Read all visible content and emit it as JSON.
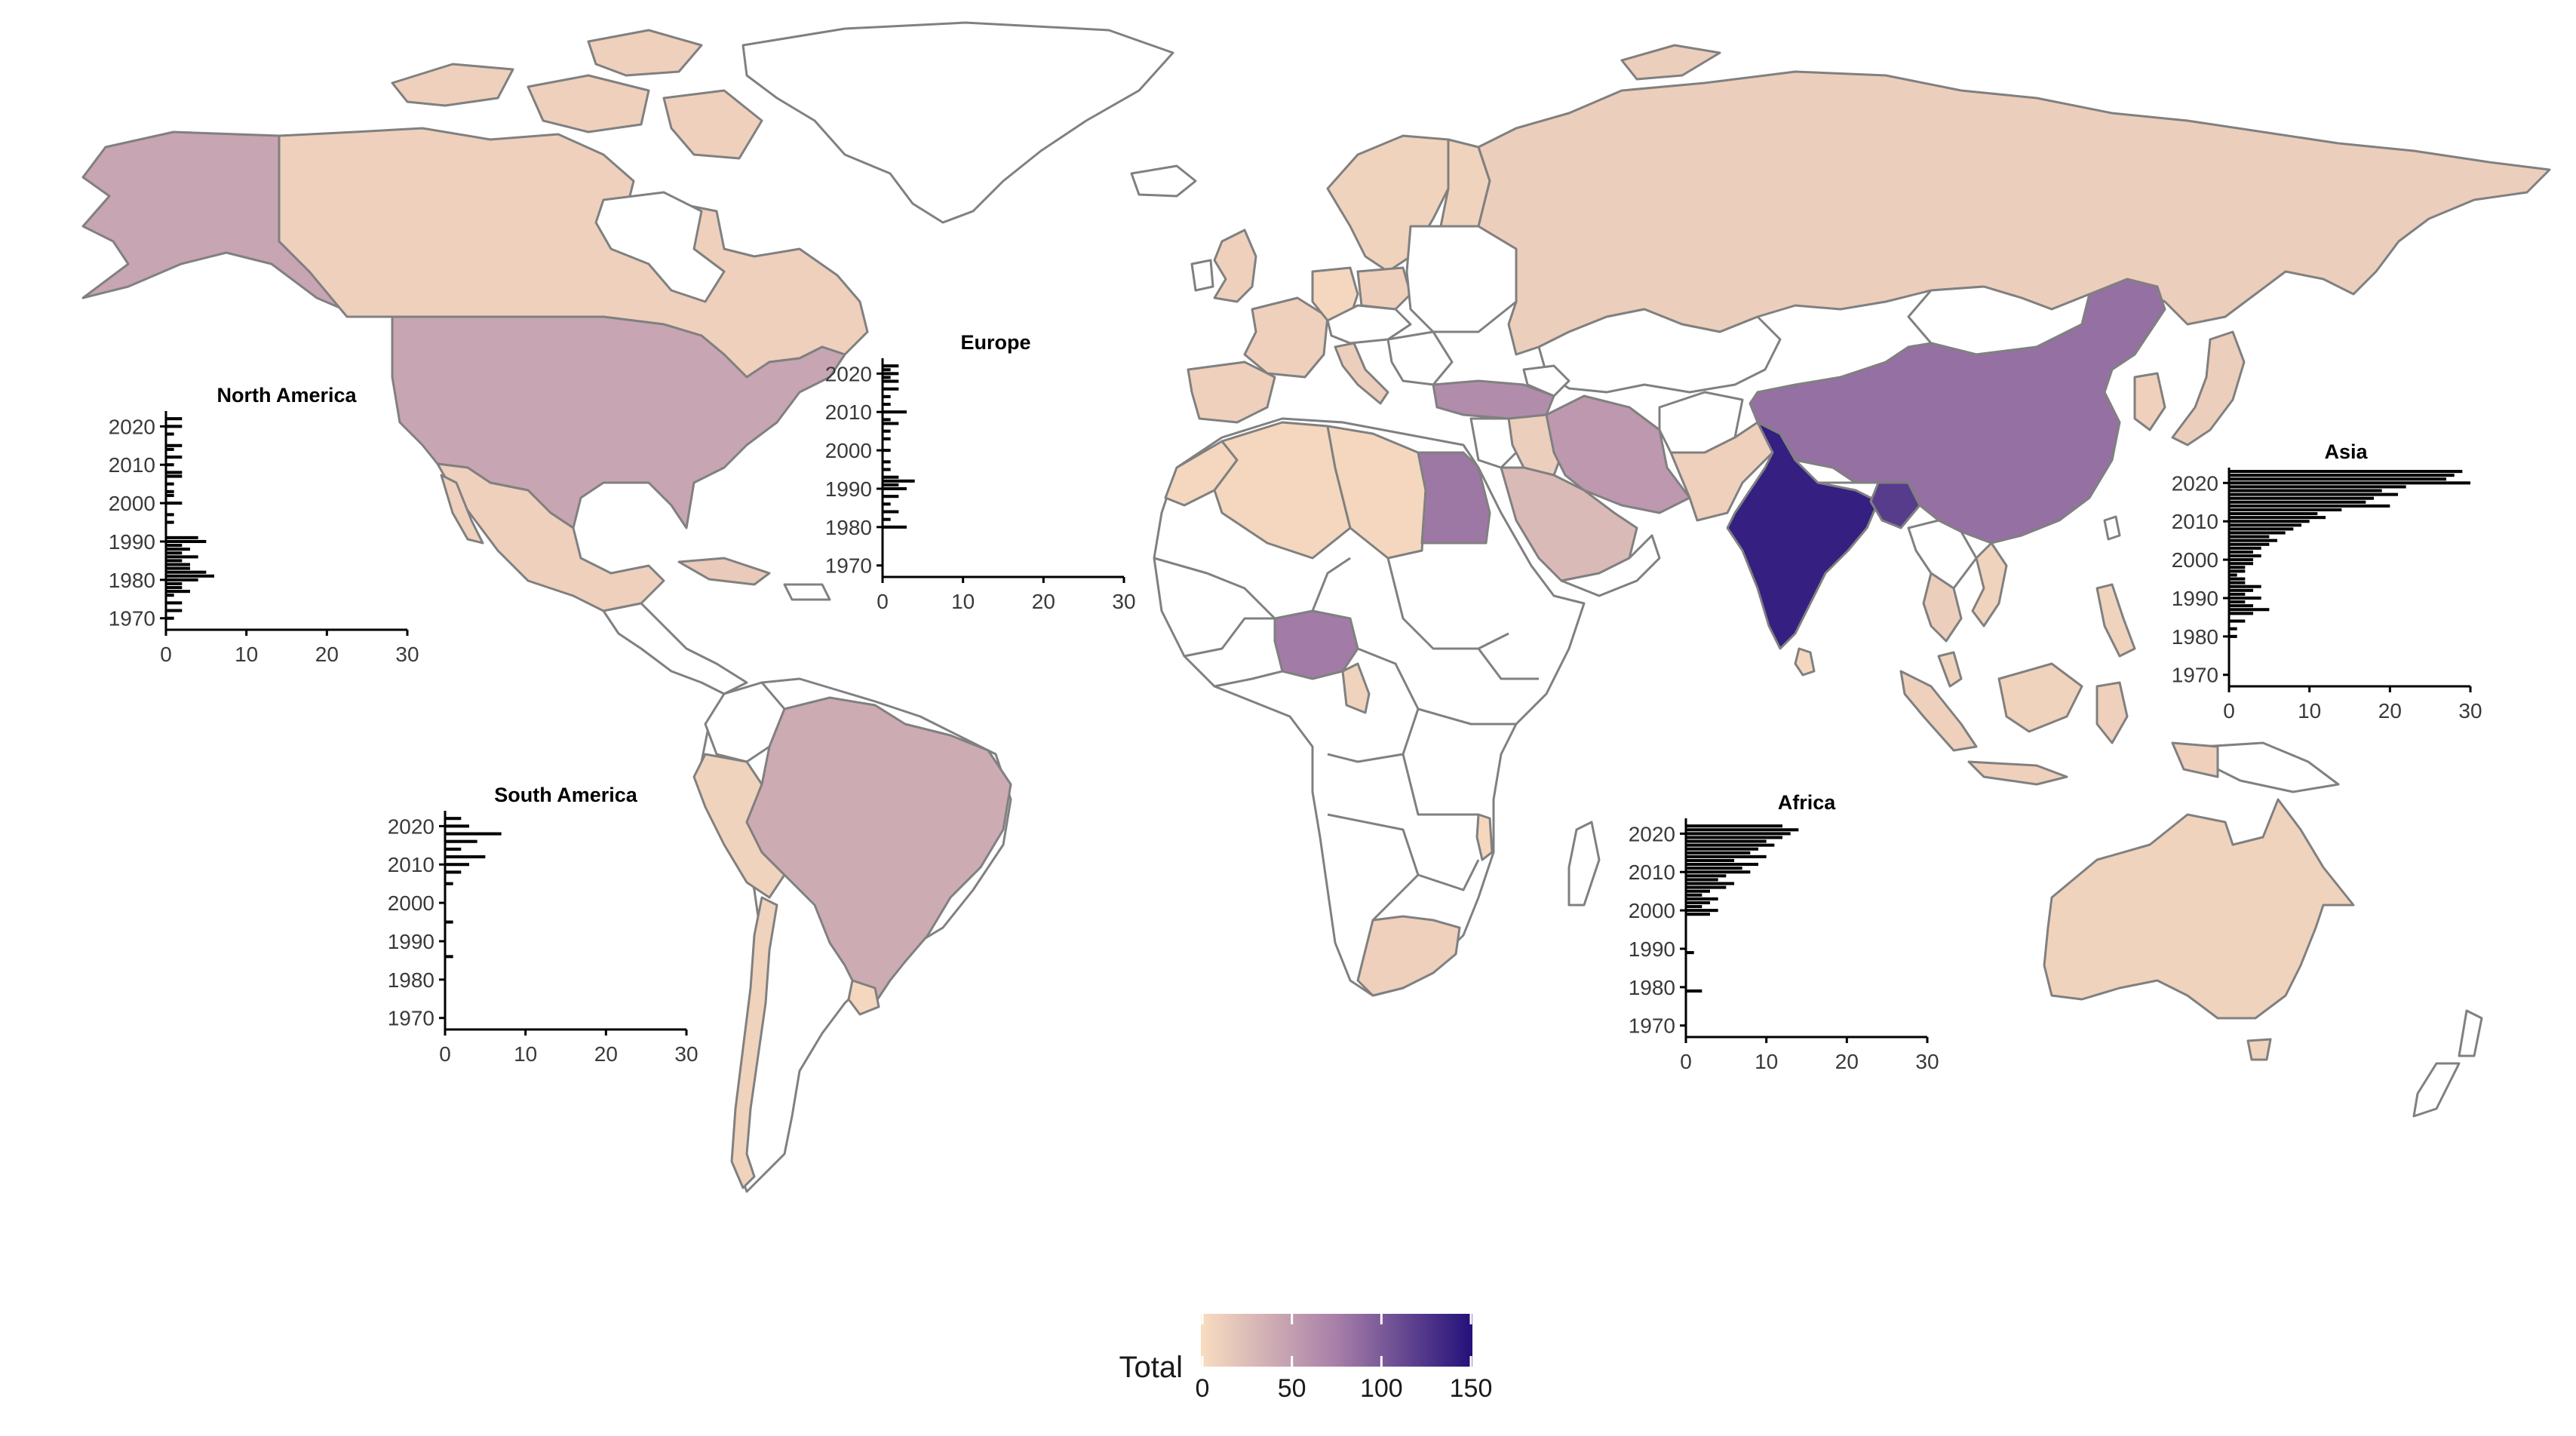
{
  "map": {
    "palette": {
      "low": "#f9ddc0",
      "mid": "#a77fa8",
      "high": "#23107a",
      "nodata": "#ffffff",
      "border": "#808080"
    },
    "countries": [
      {
        "name": "Canada",
        "value": 10
      },
      {
        "name": "Alaska",
        "value": 45
      },
      {
        "name": "United States",
        "value": 45
      },
      {
        "name": "Mexico",
        "value": 10
      },
      {
        "name": "Cuba",
        "value": 15
      },
      {
        "name": "Brazil",
        "value": 40
      },
      {
        "name": "Peru",
        "value": 8
      },
      {
        "name": "Chile",
        "value": 8
      },
      {
        "name": "Uruguay",
        "value": 5
      },
      {
        "name": "Russia",
        "value": 12
      },
      {
        "name": "United Kingdom",
        "value": 10
      },
      {
        "name": "Iberia",
        "value": 10
      },
      {
        "name": "France",
        "value": 10
      },
      {
        "name": "Germany",
        "value": 5
      },
      {
        "name": "Poland",
        "value": 10
      },
      {
        "name": "Italy",
        "value": 12
      },
      {
        "name": "Scandinavia",
        "value": 8
      },
      {
        "name": "Turkey",
        "value": 65
      },
      {
        "name": "Iran",
        "value": 55
      },
      {
        "name": "Saudi Arabia",
        "value": 28
      },
      {
        "name": "Iraq",
        "value": 12
      },
      {
        "name": "Egypt",
        "value": 80
      },
      {
        "name": "Algeria",
        "value": 5
      },
      {
        "name": "Libya",
        "value": 5
      },
      {
        "name": "Morocco",
        "value": 5
      },
      {
        "name": "Nigeria",
        "value": 78
      },
      {
        "name": "Cameroon",
        "value": 8
      },
      {
        "name": "Ethiopia",
        "value": 5
      },
      {
        "name": "Malawi",
        "value": 5
      },
      {
        "name": "South Africa",
        "value": 10
      },
      {
        "name": "Pakistan",
        "value": 10
      },
      {
        "name": "India",
        "value": 140
      },
      {
        "name": "Bangladesh",
        "value": 120
      },
      {
        "name": "Sri Lanka",
        "value": 5
      },
      {
        "name": "China",
        "value": 85
      },
      {
        "name": "Japan",
        "value": 12
      },
      {
        "name": "Korea",
        "value": 10
      },
      {
        "name": "Thailand",
        "value": 12
      },
      {
        "name": "Vietnam",
        "value": 8
      },
      {
        "name": "Malaysia",
        "value": 8
      },
      {
        "name": "Indonesia",
        "value": 10
      },
      {
        "name": "Philippines",
        "value": 8
      },
      {
        "name": "Australia",
        "value": 8
      }
    ]
  },
  "legend": {
    "title": "Total",
    "ticks": [
      "0",
      "50",
      "100",
      "150"
    ],
    "min": 0,
    "max": 150
  },
  "chart_data": [
    {
      "type": "bar",
      "orientation": "horizontal",
      "title": "North America",
      "y_ticks": [
        "2020",
        "2010",
        "2000",
        "1990",
        "1980",
        "1970"
      ],
      "x_ticks": [
        "0",
        "10",
        "20",
        "30"
      ],
      "xlim": [
        0,
        30
      ],
      "ylim": [
        1967,
        2024
      ],
      "years": [
        1970,
        1972,
        1974,
        1976,
        1977,
        1978,
        1979,
        1980,
        1981,
        1982,
        1983,
        1984,
        1985,
        1986,
        1987,
        1988,
        1989,
        1990,
        1991,
        1995,
        1997,
        2000,
        2002,
        2003,
        2005,
        2007,
        2008,
        2010,
        2012,
        2014,
        2015,
        2018,
        2020,
        2022
      ],
      "values": [
        1,
        2,
        2,
        1,
        3,
        2,
        2,
        4,
        6,
        5,
        3,
        3,
        2,
        4,
        2,
        3,
        2,
        5,
        4,
        1,
        1,
        2,
        1,
        1,
        1,
        2,
        2,
        1,
        2,
        1,
        2,
        1,
        2,
        2
      ]
    },
    {
      "type": "bar",
      "orientation": "horizontal",
      "title": "Europe",
      "y_ticks": [
        "2020",
        "2010",
        "2000",
        "1990",
        "1980",
        "1970"
      ],
      "x_ticks": [
        "0",
        "10",
        "20",
        "30"
      ],
      "xlim": [
        0,
        30
      ],
      "ylim": [
        1967,
        2024
      ],
      "years": [
        1980,
        1982,
        1984,
        1986,
        1988,
        1990,
        1991,
        1992,
        1993,
        1995,
        1997,
        2000,
        2003,
        2005,
        2007,
        2008,
        2010,
        2012,
        2014,
        2016,
        2018,
        2019,
        2020,
        2021,
        2022
      ],
      "values": [
        3,
        1,
        2,
        1,
        2,
        3,
        2,
        4,
        2,
        1,
        1,
        1,
        1,
        1,
        2,
        1,
        3,
        1,
        1,
        2,
        2,
        1,
        2,
        1,
        2
      ]
    },
    {
      "type": "bar",
      "orientation": "horizontal",
      "title": "Asia",
      "y_ticks": [
        "2020",
        "2010",
        "2000",
        "1990",
        "1980",
        "1970"
      ],
      "x_ticks": [
        "0",
        "10",
        "20",
        "30"
      ],
      "xlim": [
        0,
        30
      ],
      "ylim": [
        1967,
        2024
      ],
      "years": [
        1980,
        1982,
        1984,
        1986,
        1987,
        1988,
        1989,
        1990,
        1991,
        1992,
        1993,
        1994,
        1995,
        1996,
        1997,
        1998,
        1999,
        2000,
        2001,
        2002,
        2003,
        2004,
        2005,
        2006,
        2007,
        2008,
        2009,
        2010,
        2011,
        2012,
        2013,
        2014,
        2015,
        2016,
        2017,
        2018,
        2019,
        2020,
        2021,
        2022,
        2023
      ],
      "values": [
        1,
        1,
        2,
        3,
        5,
        3,
        2,
        4,
        2,
        3,
        4,
        2,
        2,
        1,
        2,
        2,
        3,
        3,
        4,
        3,
        4,
        5,
        6,
        5,
        7,
        8,
        9,
        10,
        12,
        11,
        14,
        20,
        17,
        18,
        21,
        19,
        22,
        30,
        27,
        28,
        29
      ]
    },
    {
      "type": "bar",
      "orientation": "horizontal",
      "title": "South America",
      "y_ticks": [
        "2020",
        "2010",
        "2000",
        "1990",
        "1980",
        "1970"
      ],
      "x_ticks": [
        "0",
        "10",
        "20",
        "30"
      ],
      "xlim": [
        0,
        30
      ],
      "ylim": [
        1967,
        2024
      ],
      "years": [
        1986,
        1995,
        2005,
        2008,
        2010,
        2012,
        2014,
        2016,
        2018,
        2020,
        2022
      ],
      "values": [
        1,
        1,
        1,
        2,
        3,
        5,
        2,
        4,
        7,
        3,
        2
      ]
    },
    {
      "type": "bar",
      "orientation": "horizontal",
      "title": "Africa",
      "y_ticks": [
        "2020",
        "2010",
        "2000",
        "1990",
        "1980",
        "1970"
      ],
      "x_ticks": [
        "0",
        "10",
        "20",
        "30"
      ],
      "xlim": [
        0,
        30
      ],
      "ylim": [
        1967,
        2024
      ],
      "years": [
        1979,
        1989,
        1999,
        2000,
        2001,
        2002,
        2003,
        2004,
        2005,
        2006,
        2007,
        2008,
        2009,
        2010,
        2011,
        2012,
        2013,
        2014,
        2015,
        2016,
        2017,
        2018,
        2019,
        2020,
        2021,
        2022
      ],
      "values": [
        2,
        1,
        3,
        4,
        2,
        3,
        4,
        2,
        3,
        5,
        6,
        4,
        5,
        8,
        7,
        9,
        6,
        10,
        8,
        9,
        11,
        10,
        12,
        13,
        14,
        12
      ]
    }
  ]
}
